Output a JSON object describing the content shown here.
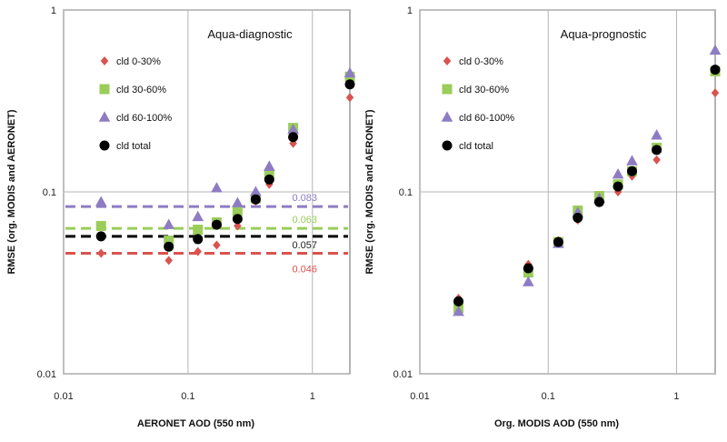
{
  "chart_data": [
    {
      "type": "scatter",
      "title": "Aqua-diagnostic",
      "xlabel": "AERONET AOD (550 nm)",
      "ylabel": "RMSE (org. MODIS and AERONET)",
      "xscale": "log",
      "yscale": "log",
      "xlim": [
        0.01,
        2
      ],
      "ylim": [
        0.01,
        1
      ],
      "xticks": [
        "0.01",
        "0.1",
        "1"
      ],
      "yticks": [
        "0.01",
        "0.1",
        "1"
      ],
      "grid": "major",
      "legend_position": "upper-left",
      "series": [
        {
          "name": "cld 0-30%",
          "marker": "diamond",
          "color": "#d9534f",
          "x": [
            0.02,
            0.07,
            0.12,
            0.17,
            0.25,
            0.35,
            0.45,
            0.7,
            2.0
          ],
          "y": [
            0.046,
            0.042,
            0.047,
            0.051,
            0.065,
            0.089,
            0.11,
            0.185,
            0.33
          ]
        },
        {
          "name": "cld 30-60%",
          "marker": "square",
          "color": "#9acd5a",
          "x": [
            0.02,
            0.07,
            0.12,
            0.17,
            0.25,
            0.35,
            0.45,
            0.7,
            2.0
          ],
          "y": [
            0.065,
            0.054,
            0.062,
            0.068,
            0.078,
            0.092,
            0.125,
            0.225,
            0.43
          ]
        },
        {
          "name": "cld 60-100%",
          "marker": "triangle",
          "color": "#8e7cc3",
          "x": [
            0.02,
            0.07,
            0.12,
            0.17,
            0.25,
            0.35,
            0.45,
            0.7,
            2.0
          ],
          "y": [
            0.088,
            0.066,
            0.073,
            0.105,
            0.087,
            0.1,
            0.138,
            0.22,
            0.45
          ]
        },
        {
          "name": "cld total",
          "marker": "circle",
          "color": "#000000",
          "x": [
            0.02,
            0.07,
            0.12,
            0.17,
            0.25,
            0.35,
            0.45,
            0.7,
            2.0
          ],
          "y": [
            0.057,
            0.05,
            0.055,
            0.066,
            0.071,
            0.091,
            0.117,
            0.2,
            0.39
          ]
        }
      ],
      "reference_lines": [
        {
          "value": 0.083,
          "label": "0.083",
          "color": "#8e7cc3"
        },
        {
          "value": 0.063,
          "label": "0.063",
          "color": "#9acd5a"
        },
        {
          "value": 0.057,
          "label": "0.057",
          "color": "#000000"
        },
        {
          "value": 0.046,
          "label": "0.046",
          "color": "#d9534f"
        }
      ]
    },
    {
      "type": "scatter",
      "title": "Aqua-prognostic",
      "xlabel": "Org. MODIS AOD (550 nm)",
      "ylabel": "RMSE (org. MODIS and AERONET)",
      "xscale": "log",
      "yscale": "log",
      "xlim": [
        0.01,
        2
      ],
      "ylim": [
        0.01,
        1
      ],
      "xticks": [
        "0.01",
        "0.1",
        "1"
      ],
      "yticks": [
        "0.01",
        "0.1",
        "1"
      ],
      "grid": "major",
      "legend_position": "upper-left",
      "series": [
        {
          "name": "cld 0-30%",
          "marker": "diamond",
          "color": "#d9534f",
          "x": [
            0.02,
            0.07,
            0.12,
            0.17,
            0.25,
            0.35,
            0.45,
            0.7,
            2.0
          ],
          "y": [
            0.026,
            0.04,
            0.054,
            0.07,
            0.087,
            0.1,
            0.122,
            0.15,
            0.35
          ]
        },
        {
          "name": "cld 30-60%",
          "marker": "square",
          "color": "#9acd5a",
          "x": [
            0.02,
            0.07,
            0.12,
            0.17,
            0.25,
            0.35,
            0.45,
            0.7,
            2.0
          ],
          "y": [
            0.023,
            0.036,
            0.053,
            0.079,
            0.095,
            0.11,
            0.13,
            0.175,
            0.46
          ]
        },
        {
          "name": "cld 60-100%",
          "marker": "triangle",
          "color": "#8e7cc3",
          "x": [
            0.02,
            0.07,
            0.12,
            0.17,
            0.25,
            0.35,
            0.45,
            0.7,
            2.0
          ],
          "y": [
            0.022,
            0.032,
            0.052,
            0.077,
            0.092,
            0.125,
            0.148,
            0.205,
            0.6
          ]
        },
        {
          "name": "cld total",
          "marker": "circle",
          "color": "#000000",
          "x": [
            0.02,
            0.07,
            0.12,
            0.17,
            0.25,
            0.35,
            0.45,
            0.7,
            2.0
          ],
          "y": [
            0.025,
            0.038,
            0.053,
            0.072,
            0.088,
            0.107,
            0.13,
            0.17,
            0.47
          ]
        }
      ],
      "reference_lines": []
    }
  ]
}
